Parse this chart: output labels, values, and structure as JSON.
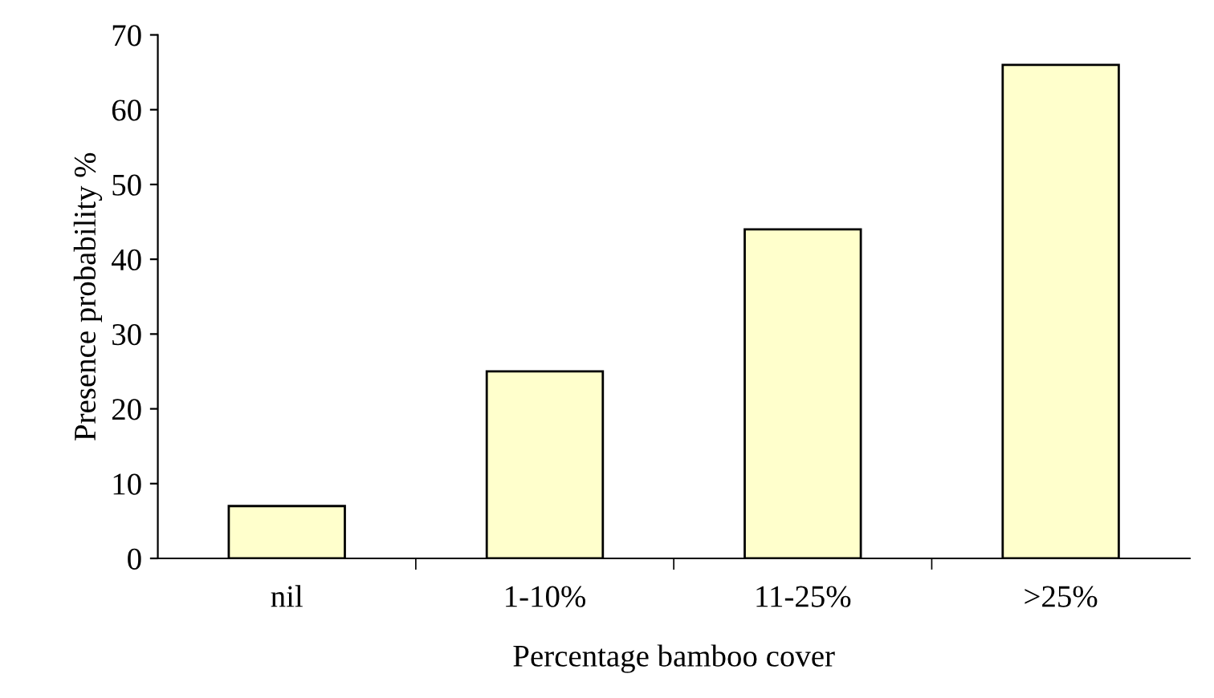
{
  "chart_data": {
    "type": "bar",
    "xlabel": "Percentage bamboo cover",
    "ylabel": "Presence probability %",
    "categories": [
      "nil",
      "1-10%",
      "11-25%",
      ">25%"
    ],
    "values": [
      7,
      25,
      44,
      66
    ],
    "color": "#ffffcc",
    "ylim": [
      0,
      70
    ],
    "yticks": [
      0,
      10,
      20,
      30,
      40,
      50,
      60,
      70
    ],
    "grid": false
  }
}
